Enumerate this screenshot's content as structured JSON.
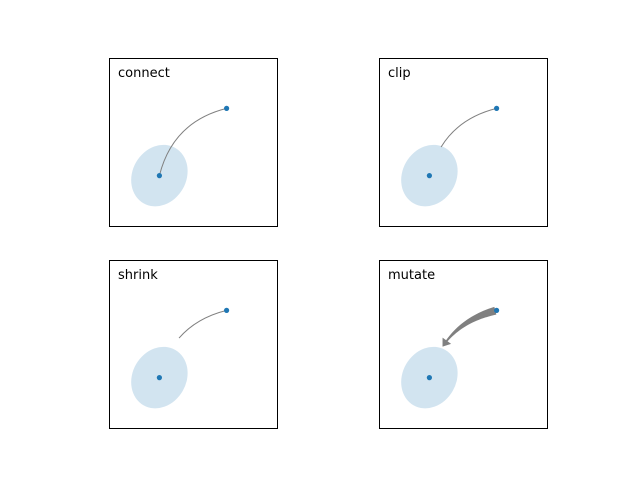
{
  "chart_data": [
    {
      "type": "scatter",
      "label": "connect",
      "connection_style": "arc3,rad=0.3",
      "points": [
        {
          "x": 0.3,
          "y": 0.3
        },
        {
          "x": 0.7,
          "y": 0.7
        }
      ],
      "ellipse": {
        "cx": 0.3,
        "cy": 0.3,
        "rx": 0.16,
        "ry": 0.19,
        "angle": 30,
        "alpha": 0.2
      },
      "xlim": [
        0,
        1
      ],
      "ylim": [
        0,
        1
      ],
      "grid": false
    },
    {
      "type": "scatter",
      "label": "clip",
      "connection_style": "arc3,rad=0.3",
      "points": [
        {
          "x": 0.3,
          "y": 0.3
        },
        {
          "x": 0.7,
          "y": 0.7
        }
      ],
      "ellipse": {
        "cx": 0.3,
        "cy": 0.3,
        "rx": 0.16,
        "ry": 0.19,
        "angle": 30,
        "alpha": 0.2
      },
      "xlim": [
        0,
        1
      ],
      "ylim": [
        0,
        1
      ],
      "grid": false
    },
    {
      "type": "scatter",
      "label": "shrink",
      "connection_style": "arc3,rad=0.3",
      "points": [
        {
          "x": 0.3,
          "y": 0.3
        },
        {
          "x": 0.7,
          "y": 0.7
        }
      ],
      "ellipse": {
        "cx": 0.3,
        "cy": 0.3,
        "rx": 0.16,
        "ry": 0.19,
        "angle": 30,
        "alpha": 0.2
      },
      "xlim": [
        0,
        1
      ],
      "ylim": [
        0,
        1
      ],
      "grid": false
    },
    {
      "type": "scatter",
      "label": "mutate",
      "connection_style": "arc3,rad=0.3",
      "points": [
        {
          "x": 0.3,
          "y": 0.3
        },
        {
          "x": 0.7,
          "y": 0.7
        }
      ],
      "ellipse": {
        "cx": 0.3,
        "cy": 0.3,
        "rx": 0.16,
        "ry": 0.19,
        "angle": 30,
        "alpha": 0.2
      },
      "xlim": [
        0,
        1
      ],
      "ylim": [
        0,
        1
      ],
      "grid": false
    }
  ],
  "colors": {
    "point": "#1f77b4",
    "ellipse": "#1f77b4",
    "connector": "#808080",
    "frame": "#000000"
  }
}
